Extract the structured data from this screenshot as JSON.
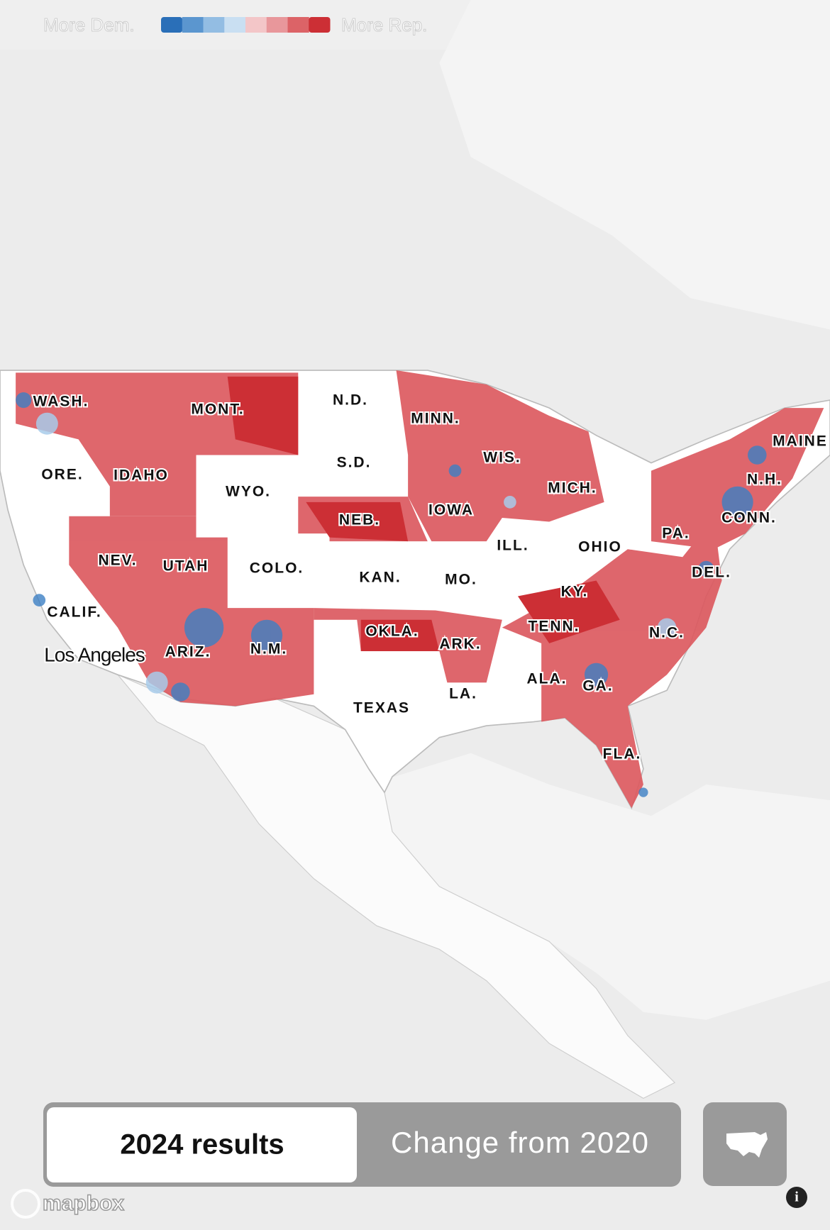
{
  "legend": {
    "left_label": "More Dem.",
    "right_label": "More Rep.",
    "colors": [
      "#2a6fb8",
      "#5b96cf",
      "#93bde3",
      "#c9dff2",
      "#f3c6c8",
      "#e8979b",
      "#dc6367",
      "#cc2f35"
    ]
  },
  "map": {
    "state_labels": [
      "WASH.",
      "MONT.",
      "N.D.",
      "MINN.",
      "MAINE",
      "ORE.",
      "IDAHO",
      "WYO.",
      "S.D.",
      "WIS.",
      "N.H.",
      "MICH.",
      "IOWA",
      "NEB.",
      "CONN.",
      "PA.",
      "ILL.",
      "OHIO",
      "NEV.",
      "UTAH",
      "COLO.",
      "KAN.",
      "MO.",
      "DEL.",
      "KY.",
      "CALIF.",
      "TENN.",
      "N.C.",
      "OKLA.",
      "ARK.",
      "ARIZ.",
      "N.M.",
      "ALA.",
      "GA.",
      "LA.",
      "TEXAS",
      "FLA."
    ],
    "city_labels": [
      "Los Angeles"
    ]
  },
  "controls": {
    "buttons": [
      "2024 results",
      "Change from 2020"
    ]
  },
  "attribution": "mapbox"
}
